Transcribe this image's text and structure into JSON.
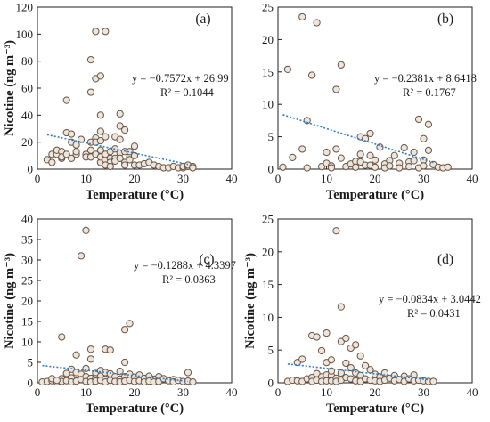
{
  "chart_data": [
    {
      "type": "scatter",
      "panel_label": "(a)",
      "xlabel": "Temperature (°C)",
      "ylabel": "Nicotine (ng m⁻³)",
      "xlim": [
        0,
        40
      ],
      "ylim": [
        0,
        120
      ],
      "xticks": [
        "0",
        "10",
        "20",
        "30",
        "40"
      ],
      "yticks": [
        "0",
        "20",
        "40",
        "60",
        "80",
        "100",
        "120"
      ],
      "equation": "y = −0.7572x + 26.99",
      "r_squared": "R² = 0.1044",
      "trend": {
        "slope": -0.7572,
        "intercept": 26.99,
        "x_from": 2,
        "x_to": 31
      },
      "points": [
        [
          2,
          7
        ],
        [
          3,
          5
        ],
        [
          3,
          11
        ],
        [
          4,
          11
        ],
        [
          4,
          14
        ],
        [
          5,
          8
        ],
        [
          5,
          13
        ],
        [
          5,
          9
        ],
        [
          6,
          27
        ],
        [
          6,
          51
        ],
        [
          6,
          11
        ],
        [
          7,
          26
        ],
        [
          7,
          20
        ],
        [
          7,
          8
        ],
        [
          8,
          18
        ],
        [
          8,
          11
        ],
        [
          8,
          13
        ],
        [
          9,
          22
        ],
        [
          10,
          11
        ],
        [
          10,
          9
        ],
        [
          11,
          81
        ],
        [
          11,
          57
        ],
        [
          11,
          20
        ],
        [
          11,
          14
        ],
        [
          11,
          9
        ],
        [
          12,
          102
        ],
        [
          12,
          67
        ],
        [
          12,
          23
        ],
        [
          12,
          20
        ],
        [
          12,
          11
        ],
        [
          13,
          28
        ],
        [
          13,
          21
        ],
        [
          13,
          40
        ],
        [
          13,
          69
        ],
        [
          13,
          5
        ],
        [
          13,
          9
        ],
        [
          13,
          14
        ],
        [
          14,
          102
        ],
        [
          14,
          24
        ],
        [
          14,
          9
        ],
        [
          14,
          7
        ],
        [
          14,
          11
        ],
        [
          15,
          8
        ],
        [
          15,
          13
        ],
        [
          15,
          5
        ],
        [
          16,
          15
        ],
        [
          16,
          24
        ],
        [
          16,
          8
        ],
        [
          16,
          6
        ],
        [
          17,
          41
        ],
        [
          17,
          32
        ],
        [
          17,
          22
        ],
        [
          17,
          12
        ],
        [
          17,
          8
        ],
        [
          18,
          13
        ],
        [
          18,
          29
        ],
        [
          18,
          5
        ],
        [
          18,
          3
        ],
        [
          19,
          9
        ],
        [
          19,
          13
        ],
        [
          19,
          7
        ],
        [
          20,
          17
        ],
        [
          20,
          10
        ],
        [
          20,
          3
        ],
        [
          21,
          3
        ],
        [
          22,
          4
        ],
        [
          23,
          5
        ],
        [
          24,
          3
        ],
        [
          25,
          2
        ],
        [
          26,
          1
        ],
        [
          27,
          1
        ],
        [
          28,
          2
        ],
        [
          29,
          1
        ],
        [
          30,
          1
        ],
        [
          30,
          2
        ],
        [
          31,
          2
        ],
        [
          31,
          3
        ],
        [
          32,
          2
        ],
        [
          32,
          1
        ],
        [
          14,
          3
        ],
        [
          15,
          2
        ]
      ]
    },
    {
      "type": "scatter",
      "panel_label": "(b)",
      "xlabel": "Temperature (°C)",
      "ylabel": "",
      "xlim": [
        0,
        40
      ],
      "ylim": [
        0,
        25
      ],
      "xticks": [
        "0",
        "10",
        "20",
        "30",
        "40"
      ],
      "yticks": [
        "0",
        "5",
        "10",
        "15",
        "20",
        "25"
      ],
      "equation": "y = −0.2381x + 8.6418",
      "r_squared": "R² = 0.1767",
      "trend": {
        "slope": -0.2381,
        "intercept": 8.6418,
        "x_from": 1,
        "x_to": 32
      },
      "points": [
        [
          1,
          0.3
        ],
        [
          2,
          15.4
        ],
        [
          3,
          1.8
        ],
        [
          5,
          23.5
        ],
        [
          5,
          3.1
        ],
        [
          6,
          7.5
        ],
        [
          6,
          0.2
        ],
        [
          7,
          14.5
        ],
        [
          8,
          22.6
        ],
        [
          9,
          0.4
        ],
        [
          10,
          2.6
        ],
        [
          10,
          0.9
        ],
        [
          11,
          0.5
        ],
        [
          11,
          0.2
        ],
        [
          12,
          12.3
        ],
        [
          12,
          3.1
        ],
        [
          13,
          16.1
        ],
        [
          13,
          1.7
        ],
        [
          14,
          0.4
        ],
        [
          15,
          0.8
        ],
        [
          16,
          1.2
        ],
        [
          16,
          0.3
        ],
        [
          17,
          5.0
        ],
        [
          17,
          2.3
        ],
        [
          17,
          1.1
        ],
        [
          18,
          0.6
        ],
        [
          18,
          4.7
        ],
        [
          19,
          5.5
        ],
        [
          19,
          2.1
        ],
        [
          19,
          0.6
        ],
        [
          20,
          1.4
        ],
        [
          20,
          0.3
        ],
        [
          21,
          3.4
        ],
        [
          22,
          0.8
        ],
        [
          22,
          0.2
        ],
        [
          23,
          1.3
        ],
        [
          23,
          0.5
        ],
        [
          24,
          2.1
        ],
        [
          25,
          0.9
        ],
        [
          25,
          0.2
        ],
        [
          26,
          3.3
        ],
        [
          27,
          1.1
        ],
        [
          27,
          0.4
        ],
        [
          28,
          2.6
        ],
        [
          28,
          1.3
        ],
        [
          29,
          7.7
        ],
        [
          29,
          0.2
        ],
        [
          30,
          4.7
        ],
        [
          30,
          1.4
        ],
        [
          30,
          0.5
        ],
        [
          31,
          6.9
        ],
        [
          31,
          2.9
        ],
        [
          32,
          0.7
        ],
        [
          33,
          0.3
        ],
        [
          34,
          0.2
        ],
        [
          35,
          0.3
        ]
      ]
    },
    {
      "type": "scatter",
      "panel_label": "(c)",
      "xlabel": "Temperature (°C)",
      "ylabel": "Nicotine (ng m⁻³)",
      "xlim": [
        0,
        40
      ],
      "ylim": [
        0,
        40
      ],
      "xticks": [
        "0",
        "10",
        "20",
        "30",
        "40"
      ],
      "yticks": [
        "0",
        "5",
        "10",
        "15",
        "20",
        "25",
        "30",
        "35",
        "40"
      ],
      "equation": "y = −0.1288x + 4.3397",
      "r_squared": "R² = 0.0363",
      "trend": {
        "slope": -0.1288,
        "intercept": 4.3397,
        "x_from": 1,
        "x_to": 31
      },
      "points": [
        [
          1,
          0.2
        ],
        [
          2,
          0.3
        ],
        [
          3,
          0.5
        ],
        [
          4,
          0.2
        ],
        [
          5,
          1.0
        ],
        [
          5,
          0.3
        ],
        [
          5,
          11.2
        ],
        [
          6,
          2.3
        ],
        [
          6,
          0.5
        ],
        [
          7,
          3.3
        ],
        [
          7,
          1.2
        ],
        [
          7,
          0.2
        ],
        [
          8,
          6.8
        ],
        [
          8,
          2.5
        ],
        [
          8,
          0.4
        ],
        [
          9,
          31.0
        ],
        [
          9,
          2.1
        ],
        [
          9,
          0.8
        ],
        [
          10,
          37.2
        ],
        [
          10,
          3.5
        ],
        [
          10,
          1.5
        ],
        [
          10,
          0.3
        ],
        [
          11,
          8.2
        ],
        [
          11,
          5.8
        ],
        [
          11,
          1.1
        ],
        [
          11,
          0.2
        ],
        [
          12,
          2.3
        ],
        [
          12,
          1.0
        ],
        [
          12,
          0.4
        ],
        [
          13,
          3.0
        ],
        [
          13,
          1.6
        ],
        [
          13,
          0.6
        ],
        [
          14,
          8.2
        ],
        [
          14,
          2.5
        ],
        [
          14,
          0.9
        ],
        [
          14,
          0.2
        ],
        [
          15,
          8.0
        ],
        [
          15,
          2.2
        ],
        [
          15,
          0.6
        ],
        [
          16,
          1.5
        ],
        [
          16,
          0.3
        ],
        [
          17,
          2.8
        ],
        [
          17,
          0.9
        ],
        [
          17,
          0.2
        ],
        [
          18,
          13.0
        ],
        [
          18,
          5.0
        ],
        [
          18,
          1.5
        ],
        [
          18,
          0.4
        ],
        [
          19,
          14.5
        ],
        [
          19,
          2.1
        ],
        [
          19,
          0.6
        ],
        [
          20,
          1.4
        ],
        [
          20,
          0.3
        ],
        [
          21,
          1.9
        ],
        [
          21,
          0.5
        ],
        [
          22,
          1.1
        ],
        [
          22,
          0.2
        ],
        [
          23,
          1.6
        ],
        [
          23,
          0.4
        ],
        [
          24,
          0.9
        ],
        [
          24,
          0.2
        ],
        [
          25,
          1.5
        ],
        [
          25,
          0.3
        ],
        [
          26,
          1.0
        ],
        [
          27,
          0.5
        ],
        [
          28,
          0.8
        ],
        [
          28,
          0.2
        ],
        [
          29,
          0.6
        ],
        [
          30,
          0.3
        ],
        [
          31,
          2.5
        ],
        [
          31,
          0.4
        ],
        [
          32,
          0.2
        ],
        [
          3,
          1.0
        ],
        [
          4,
          0.6
        ]
      ]
    },
    {
      "type": "scatter",
      "panel_label": "(d)",
      "xlabel": "Temperature (°C)",
      "ylabel": "Nicotine (ng m⁻³)",
      "xlim": [
        0,
        40
      ],
      "ylim": [
        0,
        25
      ],
      "xticks": [
        "0",
        "10",
        "20",
        "30",
        "40"
      ],
      "yticks": [
        "0",
        "5",
        "10",
        "15",
        "20",
        "25"
      ],
      "equation": "y = −0.0834x + 3.0442",
      "r_squared": "R² = 0.0431",
      "trend": {
        "slope": -0.0834,
        "intercept": 3.0442,
        "x_from": 2,
        "x_to": 31
      },
      "points": [
        [
          2,
          0.2
        ],
        [
          3,
          0.4
        ],
        [
          4,
          3.1
        ],
        [
          4,
          0.3
        ],
        [
          5,
          3.6
        ],
        [
          5,
          0.2
        ],
        [
          6,
          0.6
        ],
        [
          7,
          7.2
        ],
        [
          7,
          0.8
        ],
        [
          7,
          0.2
        ],
        [
          8,
          7.0
        ],
        [
          8,
          1.4
        ],
        [
          8,
          0.4
        ],
        [
          9,
          0.9
        ],
        [
          9,
          0.2
        ],
        [
          10,
          7.6
        ],
        [
          10,
          3.1
        ],
        [
          10,
          1.2
        ],
        [
          10,
          0.3
        ],
        [
          11,
          3.5
        ],
        [
          11,
          1.1
        ],
        [
          11,
          0.3
        ],
        [
          12,
          23.2
        ],
        [
          12,
          0.7
        ],
        [
          12,
          0.2
        ],
        [
          13,
          11.6
        ],
        [
          13,
          6.3
        ],
        [
          13,
          1.5
        ],
        [
          13,
          0.4
        ],
        [
          14,
          6.8
        ],
        [
          14,
          3.0
        ],
        [
          14,
          0.8
        ],
        [
          15,
          5.3
        ],
        [
          15,
          2.3
        ],
        [
          15,
          0.6
        ],
        [
          16,
          5.8
        ],
        [
          16,
          1.5
        ],
        [
          16,
          0.3
        ],
        [
          17,
          4.1
        ],
        [
          17,
          1.1
        ],
        [
          17,
          0.2
        ],
        [
          18,
          2.6
        ],
        [
          18,
          0.6
        ],
        [
          19,
          2.0
        ],
        [
          19,
          0.4
        ],
        [
          20,
          1.3
        ],
        [
          20,
          0.3
        ],
        [
          21,
          0.9
        ],
        [
          21,
          0.2
        ],
        [
          22,
          1.5
        ],
        [
          22,
          0.4
        ],
        [
          23,
          0.7
        ],
        [
          24,
          1.1
        ],
        [
          24,
          0.3
        ],
        [
          25,
          0.5
        ],
        [
          26,
          1.0
        ],
        [
          26,
          0.2
        ],
        [
          27,
          0.6
        ],
        [
          28,
          1.2
        ],
        [
          28,
          0.3
        ],
        [
          29,
          0.4
        ],
        [
          30,
          0.3
        ],
        [
          31,
          0.2
        ],
        [
          32,
          0.2
        ],
        [
          9,
          4.9
        ],
        [
          11,
          1.8
        ]
      ]
    }
  ]
}
